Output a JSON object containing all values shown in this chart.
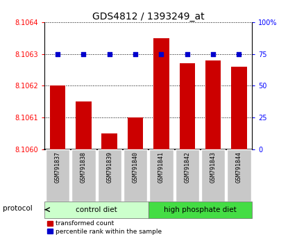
{
  "title": "GDS4812 / 1393249_at",
  "samples": [
    "GSM791837",
    "GSM791838",
    "GSM791839",
    "GSM791840",
    "GSM791841",
    "GSM791842",
    "GSM791843",
    "GSM791844"
  ],
  "transformed_count": [
    8.1062,
    8.10615,
    8.10605,
    8.1061,
    8.10635,
    8.10627,
    8.10628,
    8.10626
  ],
  "percentile_rank": [
    75,
    75,
    75,
    75,
    75,
    75,
    75,
    75
  ],
  "ylim_left": [
    8.106,
    8.1064
  ],
  "ylim_right": [
    0,
    100
  ],
  "yticks_left": [
    8.106,
    8.1061,
    8.1062,
    8.1063,
    8.1064
  ],
  "yticks_right": [
    0,
    25,
    50,
    75,
    100
  ],
  "groups": [
    {
      "label": "control diet",
      "indices": [
        0,
        1,
        2,
        3
      ],
      "color": "#ccffcc"
    },
    {
      "label": "high phosphate diet",
      "indices": [
        4,
        5,
        6,
        7
      ],
      "color": "#44dd44"
    }
  ],
  "bar_color": "#cc0000",
  "dot_color": "#0000cc",
  "bar_width": 0.6,
  "protocol_label": "protocol",
  "legend_items": [
    {
      "label": "transformed count",
      "color": "#cc0000"
    },
    {
      "label": "percentile rank within the sample",
      "color": "#0000cc"
    }
  ],
  "title_fontsize": 10,
  "tick_fontsize": 7,
  "label_fontsize": 8,
  "background_color": "#ffffff",
  "plot_bg_color": "#ffffff",
  "xtick_box_color": "#c8c8c8"
}
